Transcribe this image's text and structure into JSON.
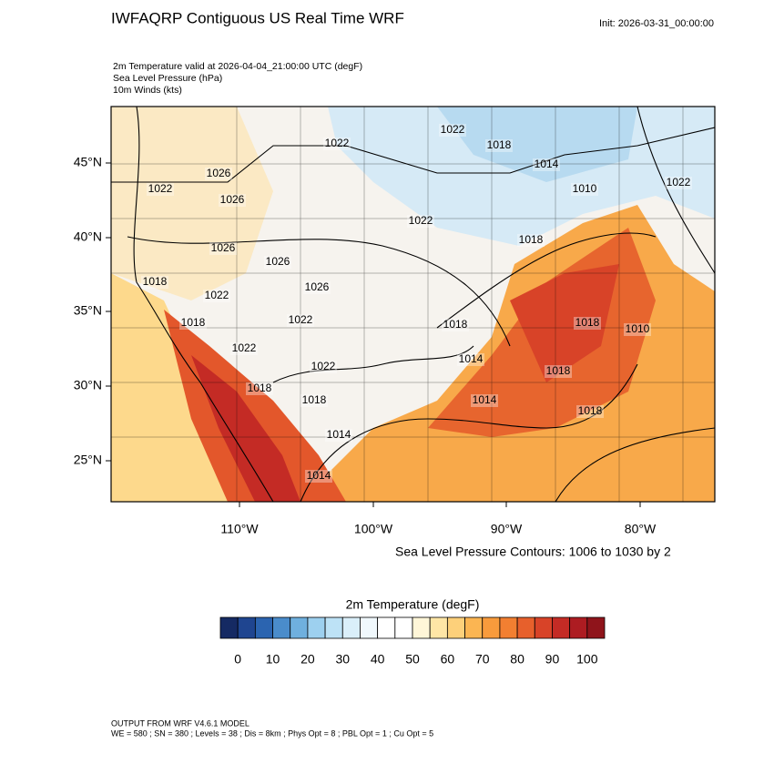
{
  "header": {
    "title": "IWFAQRP Contiguous US Real Time WRF",
    "init": "Init: 2026-03-31_00:00:00",
    "subtitle_lines": [
      "2m Temperature valid at 2026-04-04_21:00:00 UTC   (degF)",
      "Sea Level Pressure   (hPa)",
      "10m Winds   (kts)"
    ]
  },
  "map": {
    "lat_labels": [
      "45°N",
      "40°N",
      "35°N",
      "30°N",
      "25°N"
    ],
    "lon_labels": [
      "110°W",
      "100°W",
      "90°W",
      "80°W"
    ],
    "contour_labels": [
      "1022",
      "1022",
      "1018",
      "1014",
      "1010",
      "1022",
      "1026",
      "1026",
      "1022",
      "1026",
      "1026",
      "1026",
      "1018",
      "1022",
      "1018",
      "1018",
      "1022",
      "1022",
      "1022",
      "1010",
      "1018",
      "1014",
      "1014",
      "1018",
      "1018",
      "1018",
      "1014",
      "1018",
      "1018",
      "1014",
      "1022"
    ],
    "contour_note": "Sea Level Pressure Contours: 1006 to 1030 by 2"
  },
  "colorbar": {
    "title": "2m Temperature  (degF)",
    "colors": [
      "#152a63",
      "#1f4590",
      "#2b64b0",
      "#4a8ccb",
      "#6fb0de",
      "#9dd0ef",
      "#bde2f6",
      "#daeffa",
      "#f0f8fc",
      "#ffffff",
      "#ffffff",
      "#fff6d8",
      "#ffe6a6",
      "#fdd07a",
      "#fbb552",
      "#f89b3c",
      "#f27f31",
      "#e7602c",
      "#d84328",
      "#c42b25",
      "#ad1c22",
      "#8f141b"
    ],
    "labels": [
      "0",
      "10",
      "20",
      "30",
      "40",
      "50",
      "60",
      "70",
      "80",
      "90",
      "100"
    ]
  },
  "footer": {
    "lines": [
      "OUTPUT FROM WRF V4.6.1 MODEL",
      "WE = 580 ; SN = 380 ; Levels = 38 ; Dis = 8km ; Phys Opt = 8 ; PBL Opt = 1 ; Cu Opt = 5"
    ]
  }
}
